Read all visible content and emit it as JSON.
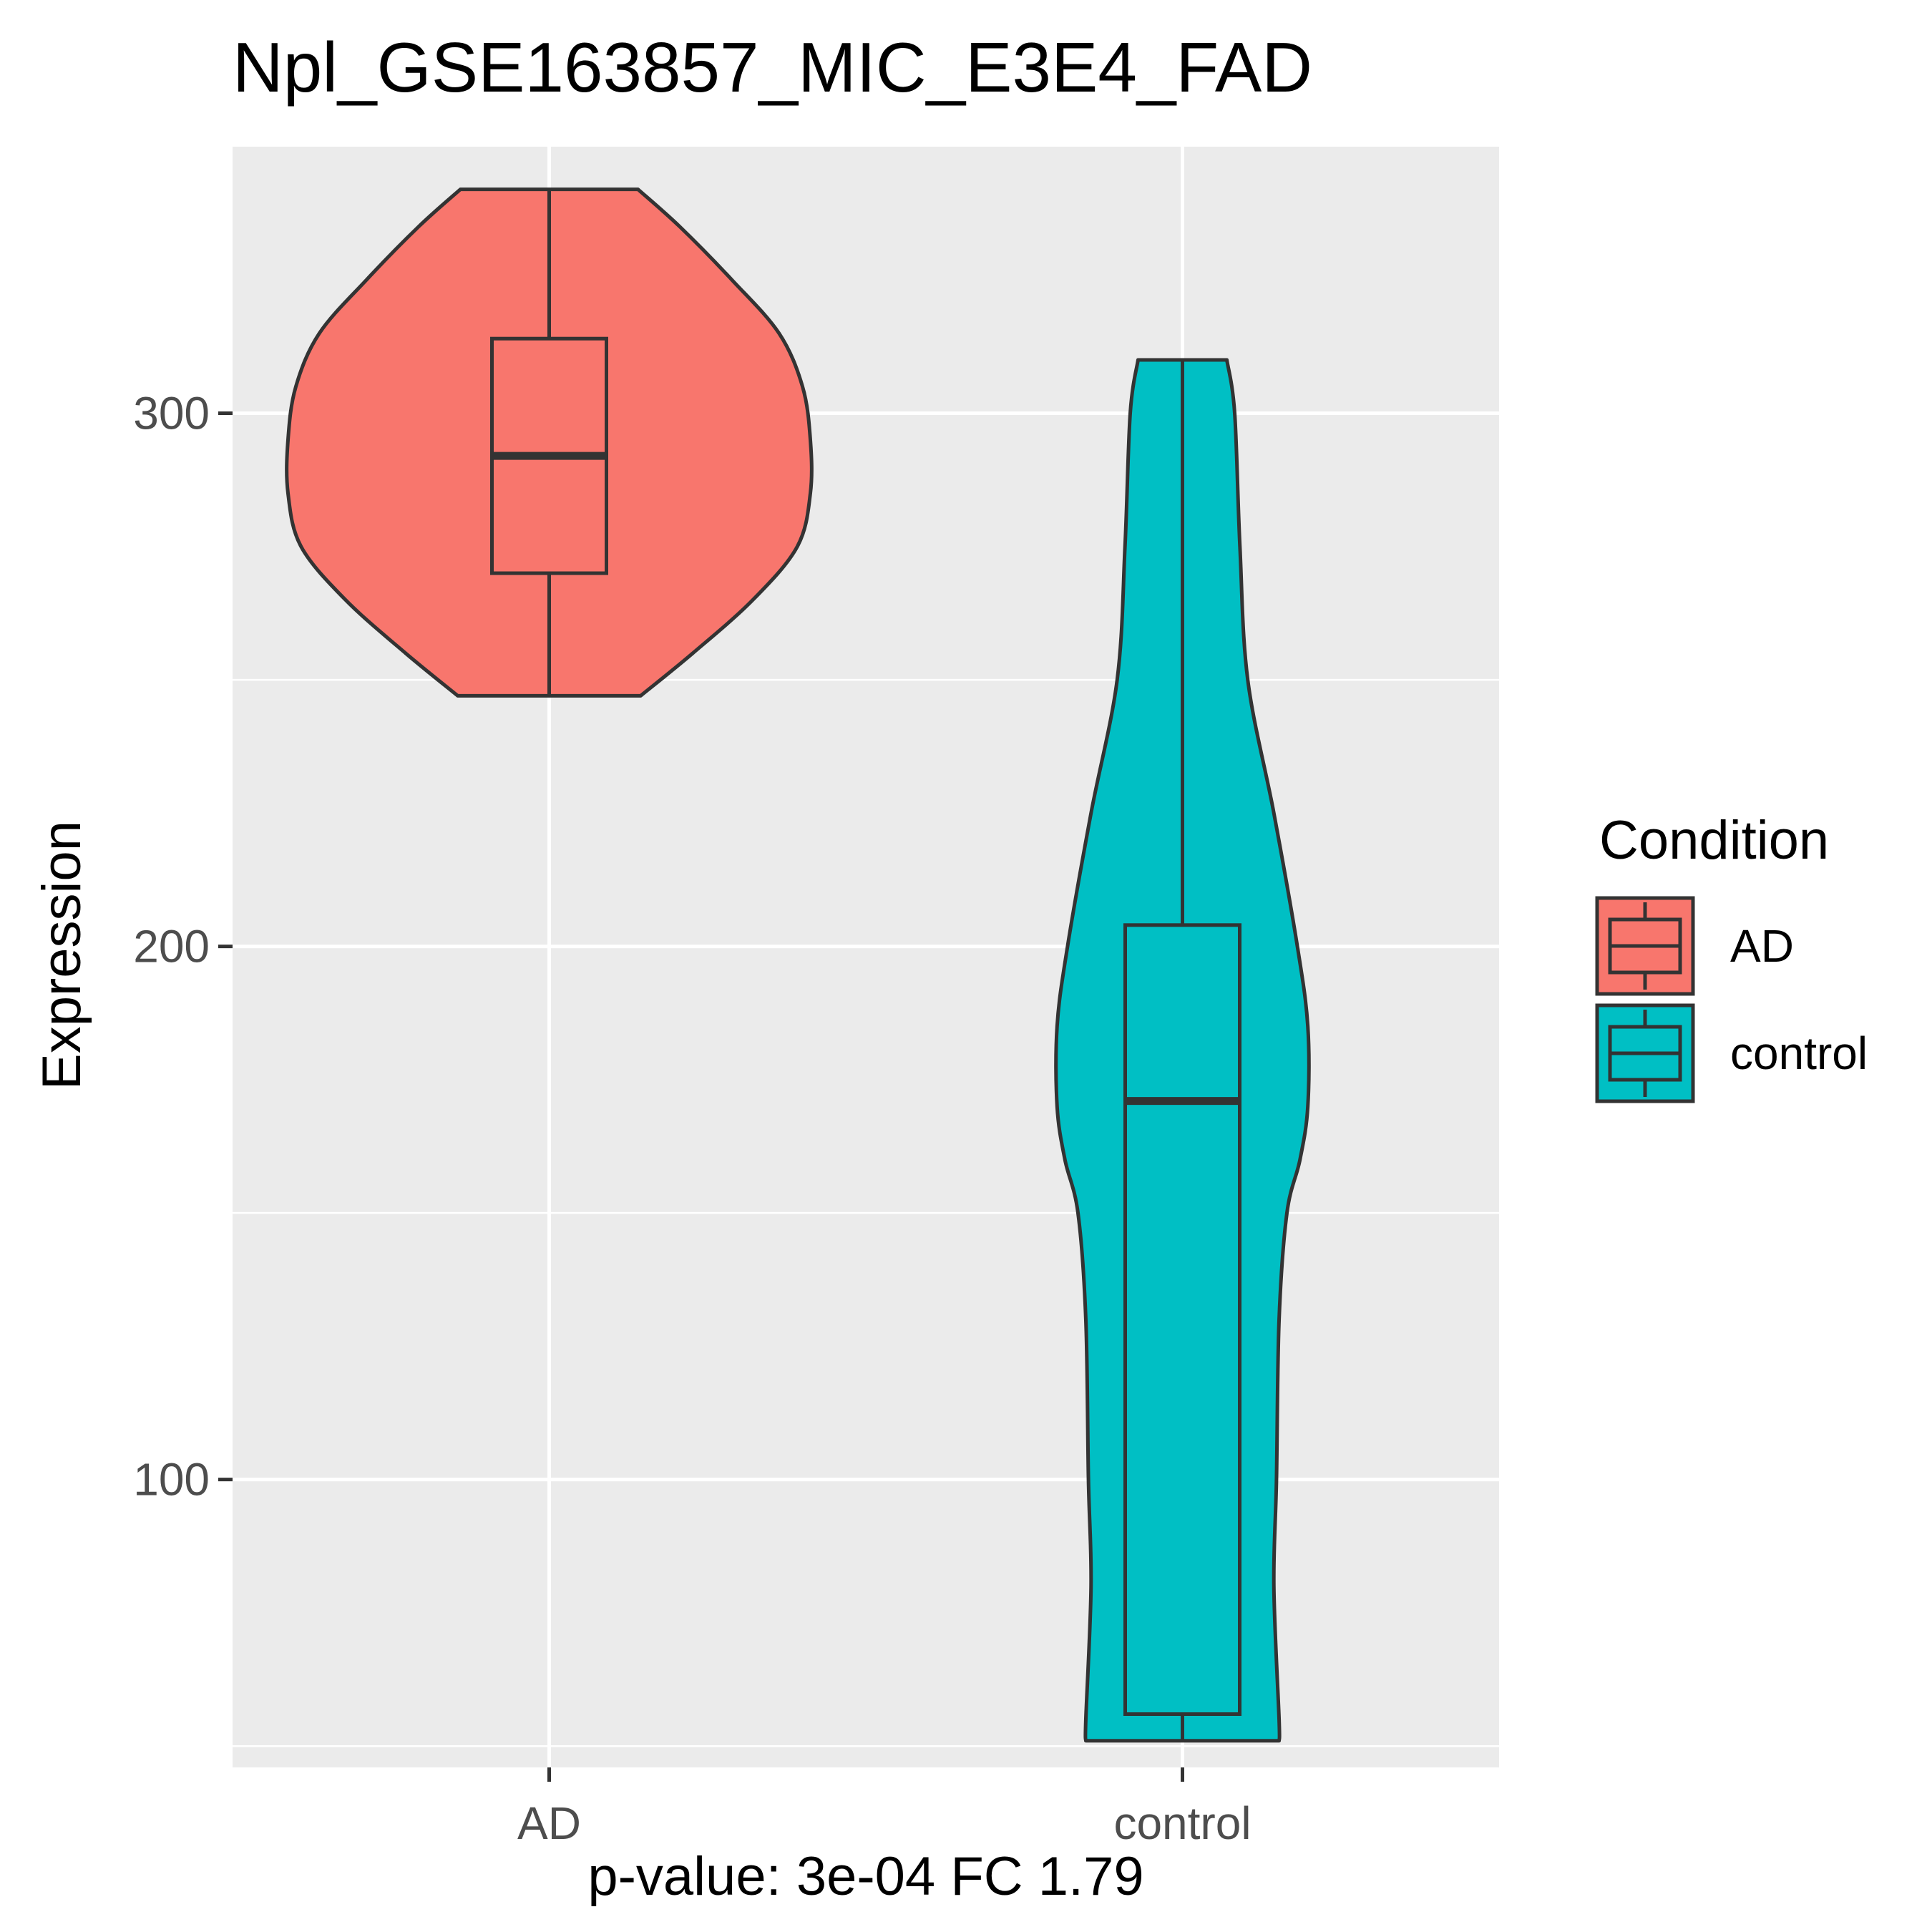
{
  "chart_data": {
    "type": "violin",
    "title": "Npl_GSE163857_MIC_E3E4_FAD",
    "xlabel": "p-value: 3e-04 FC 1.79",
    "ylabel": "Expression",
    "categories": [
      "AD",
      "control"
    ],
    "ylim": [
      46,
      350
    ],
    "yticks": [
      100,
      200,
      300
    ],
    "y_minor_gridlines": [
      50,
      150,
      250
    ],
    "grid": true,
    "legend": {
      "title": "Condition",
      "position": "right",
      "entries": [
        "AD",
        "control"
      ]
    },
    "colors": {
      "AD": "#F8766D",
      "control": "#00BFC4",
      "panel": "#EBEBEB",
      "grid": "#FFFFFF",
      "outline": "#333333",
      "tick_text": "#4D4D4D"
    },
    "series": [
      {
        "name": "AD",
        "violin_profile": [
          [
            247,
            0.35
          ],
          [
            255,
            0.55
          ],
          [
            265,
            0.78
          ],
          [
            275,
            0.95
          ],
          [
            285,
            1.0
          ],
          [
            295,
            1.0
          ],
          [
            305,
            0.97
          ],
          [
            315,
            0.88
          ],
          [
            325,
            0.7
          ],
          [
            335,
            0.5
          ],
          [
            342,
            0.34
          ]
        ],
        "box": {
          "min": 247,
          "q1": 270,
          "median": 292,
          "q3": 314,
          "max": 342
        }
      },
      {
        "name": "control",
        "violin_profile": [
          [
            51,
            0.37
          ],
          [
            55,
            0.37
          ],
          [
            80,
            0.35
          ],
          [
            100,
            0.36
          ],
          [
            130,
            0.37
          ],
          [
            150,
            0.4
          ],
          [
            160,
            0.45
          ],
          [
            170,
            0.48
          ],
          [
            185,
            0.48
          ],
          [
            200,
            0.44
          ],
          [
            225,
            0.35
          ],
          [
            250,
            0.25
          ],
          [
            275,
            0.22
          ],
          [
            300,
            0.2
          ],
          [
            310,
            0.17
          ]
        ],
        "box": {
          "min": 51,
          "q1": 56,
          "median": 171,
          "q3": 204,
          "max": 310
        }
      }
    ]
  }
}
